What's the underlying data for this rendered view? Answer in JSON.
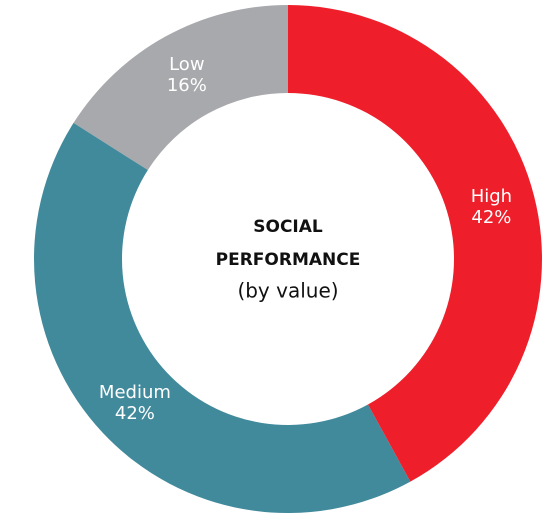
{
  "chart_data": {
    "type": "donut",
    "title_lines": [
      "SOCIAL",
      "PERFORMANCE"
    ],
    "subtitle": "(by value)",
    "categories": [
      "High",
      "Medium",
      "Low"
    ],
    "values": [
      42,
      42,
      16
    ],
    "value_labels": [
      "42%",
      "42%",
      "16%"
    ],
    "colors": [
      "#ee1f2a",
      "#418a9c",
      "#a8a9ac"
    ]
  }
}
